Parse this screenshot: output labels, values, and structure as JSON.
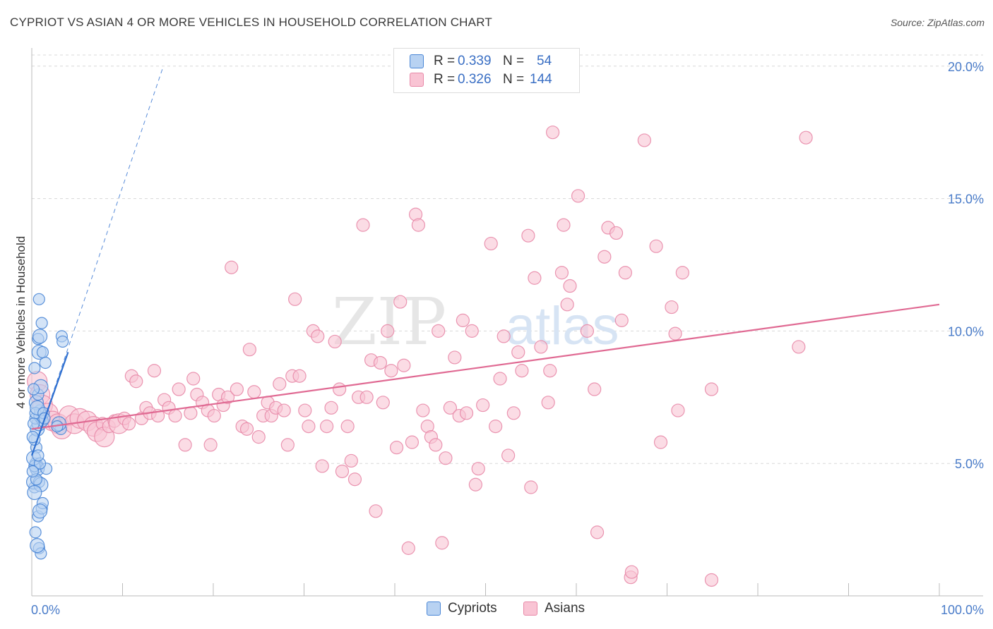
{
  "header": {
    "title": "CYPRIOT VS ASIAN 4 OR MORE VEHICLES IN HOUSEHOLD CORRELATION CHART",
    "source": "Source: ZipAtlas.com"
  },
  "legend": {
    "rows": [
      {
        "r_label": "R =",
        "r_value": "0.339",
        "n_label": "N =",
        "n_value": "54"
      },
      {
        "r_label": "R =",
        "r_value": "0.326",
        "n_label": "N =",
        "n_value": "144"
      }
    ]
  },
  "bottom_legend": {
    "cypriots": "Cypriots",
    "asians": "Asians"
  },
  "watermark": {
    "zip": "ZIP",
    "atlas": "atlas"
  },
  "colors": {
    "cypriot_fill": "#b8d2f2",
    "cypriot_stroke": "#4a86d6",
    "cypriot_line": "#2e6fd0",
    "asian_fill": "#f9c4d4",
    "asian_stroke": "#e889a8",
    "asian_line": "#e06a93",
    "tick": "#4a7cc9",
    "grid": "#d8d8d8"
  },
  "chart_data": {
    "type": "scatter",
    "title": "CYPRIOT VS ASIAN 4 OR MORE VEHICLES IN HOUSEHOLD CORRELATION CHART",
    "xlabel": "",
    "ylabel": "4 or more Vehicles in Household",
    "xlim": [
      0,
      100
    ],
    "ylim": [
      0,
      20.5
    ],
    "x_tick_labels": [
      "0.0%",
      "100.0%"
    ],
    "y_ticks": [
      5,
      10,
      15,
      20
    ],
    "y_tick_labels": [
      "5.0%",
      "10.0%",
      "15.0%",
      "20.0%"
    ],
    "grid": true,
    "series": [
      {
        "name": "Cypriots",
        "R": 0.339,
        "N": 54,
        "trend": {
          "x0": 0,
          "y0": 5.3,
          "x1": 4.0,
          "y1": 9.2
        },
        "trend_extended": {
          "x0": 0,
          "y0": 5.3,
          "x1": 14.5,
          "y1": 20.0
        },
        "points": [
          [
            0.3,
            4.1,
            0
          ],
          [
            0.2,
            4.3,
            1
          ],
          [
            0.5,
            4.9,
            1
          ],
          [
            0.4,
            5.0,
            0
          ],
          [
            0.6,
            4.8,
            1
          ],
          [
            0.3,
            4.9,
            0
          ],
          [
            0.8,
            4.3,
            0
          ],
          [
            1.0,
            4.2,
            1
          ],
          [
            0.7,
            3.0,
            0
          ],
          [
            1.1,
            3.3,
            0
          ],
          [
            1.2,
            3.5,
            0
          ],
          [
            0.9,
            3.2,
            1
          ],
          [
            0.4,
            2.4,
            0
          ],
          [
            0.8,
            1.8,
            0
          ],
          [
            1.0,
            1.6,
            0
          ],
          [
            0.6,
            1.9,
            1
          ],
          [
            0.5,
            5.6,
            0
          ],
          [
            0.3,
            5.9,
            0
          ],
          [
            0.6,
            6.3,
            1
          ],
          [
            0.8,
            6.5,
            1
          ],
          [
            0.4,
            6.7,
            0
          ],
          [
            1.0,
            6.8,
            1
          ],
          [
            1.2,
            6.6,
            0
          ],
          [
            0.9,
            7.0,
            0
          ],
          [
            0.5,
            7.3,
            1
          ],
          [
            0.7,
            7.6,
            0
          ],
          [
            1.0,
            7.9,
            1
          ],
          [
            0.3,
            8.6,
            0
          ],
          [
            1.5,
            8.8,
            0
          ],
          [
            0.8,
            9.2,
            1
          ],
          [
            1.2,
            9.2,
            0
          ],
          [
            0.7,
            9.7,
            0
          ],
          [
            0.9,
            9.8,
            1
          ],
          [
            1.1,
            10.3,
            0
          ],
          [
            0.8,
            11.2,
            0
          ],
          [
            3.3,
            9.8,
            0
          ],
          [
            3.4,
            9.6,
            0
          ],
          [
            3.2,
            6.3,
            0
          ],
          [
            3.0,
            6.5,
            1
          ],
          [
            1.6,
            4.8,
            0
          ],
          [
            0.2,
            5.2,
            1
          ],
          [
            0.1,
            6.0,
            0
          ],
          [
            0.4,
            6.9,
            0
          ],
          [
            0.6,
            7.1,
            1
          ],
          [
            1.3,
            6.9,
            0
          ],
          [
            0.2,
            7.8,
            0
          ],
          [
            0.9,
            5.0,
            0
          ],
          [
            0.5,
            4.4,
            0
          ],
          [
            0.3,
            3.9,
            1
          ],
          [
            0.2,
            6.5,
            0
          ],
          [
            1.4,
            6.7,
            0
          ],
          [
            0.7,
            5.3,
            0
          ],
          [
            0.1,
            4.7,
            0
          ],
          [
            2.8,
            6.4,
            0
          ]
        ]
      },
      {
        "name": "Asians",
        "R": 0.326,
        "N": 144,
        "trend": {
          "x0": 0,
          "y0": 6.3,
          "x1": 100,
          "y1": 11.0
        },
        "points": [
          [
            0.6,
            8.1,
            1
          ],
          [
            0.9,
            7.6,
            1
          ],
          [
            1.2,
            7.2,
            1
          ],
          [
            1.8,
            6.9,
            1
          ],
          [
            2.3,
            6.6,
            1
          ],
          [
            2.9,
            6.5,
            1
          ],
          [
            3.3,
            6.3,
            1
          ],
          [
            4.1,
            6.8,
            1
          ],
          [
            4.7,
            6.5,
            1
          ],
          [
            5.3,
            6.7,
            1
          ],
          [
            6.1,
            6.6,
            1
          ],
          [
            6.8,
            6.4,
            1
          ],
          [
            7.2,
            6.2,
            1
          ],
          [
            7.8,
            6.5,
            0
          ],
          [
            8.0,
            6.0,
            1
          ],
          [
            8.5,
            6.4,
            0
          ],
          [
            9.1,
            6.6,
            0
          ],
          [
            9.6,
            6.5,
            1
          ],
          [
            10.2,
            6.7,
            0
          ],
          [
            10.7,
            6.5,
            0
          ],
          [
            11.0,
            8.3,
            0
          ],
          [
            11.5,
            8.1,
            0
          ],
          [
            12.1,
            6.7,
            0
          ],
          [
            12.6,
            7.1,
            0
          ],
          [
            13.0,
            6.9,
            0
          ],
          [
            13.5,
            8.5,
            0
          ],
          [
            13.9,
            6.8,
            0
          ],
          [
            14.6,
            7.4,
            0
          ],
          [
            15.1,
            7.1,
            0
          ],
          [
            15.8,
            6.8,
            0
          ],
          [
            16.2,
            7.8,
            0
          ],
          [
            16.9,
            5.7,
            0
          ],
          [
            17.5,
            6.9,
            0
          ],
          [
            17.8,
            8.2,
            0
          ],
          [
            18.2,
            7.6,
            0
          ],
          [
            18.8,
            7.3,
            0
          ],
          [
            19.4,
            7.0,
            0
          ],
          [
            19.7,
            5.7,
            0
          ],
          [
            20.1,
            6.8,
            0
          ],
          [
            20.6,
            7.6,
            0
          ],
          [
            21.1,
            7.2,
            0
          ],
          [
            21.6,
            7.5,
            0
          ],
          [
            22.0,
            12.4,
            0
          ],
          [
            22.6,
            7.8,
            0
          ],
          [
            23.2,
            6.4,
            0
          ],
          [
            23.7,
            6.3,
            0
          ],
          [
            24.0,
            9.3,
            0
          ],
          [
            24.5,
            7.7,
            0
          ],
          [
            25.0,
            6.0,
            0
          ],
          [
            25.5,
            6.8,
            0
          ],
          [
            26.0,
            7.3,
            0
          ],
          [
            26.4,
            6.8,
            0
          ],
          [
            26.9,
            7.1,
            0
          ],
          [
            27.3,
            8.0,
            0
          ],
          [
            27.8,
            7.0,
            0
          ],
          [
            28.2,
            5.7,
            0
          ],
          [
            28.7,
            8.3,
            0
          ],
          [
            29.0,
            11.2,
            0
          ],
          [
            29.5,
            8.3,
            0
          ],
          [
            30.1,
            7.0,
            0
          ],
          [
            30.5,
            6.4,
            0
          ],
          [
            31.0,
            10.0,
            0
          ],
          [
            31.5,
            9.8,
            0
          ],
          [
            32.0,
            4.9,
            0
          ],
          [
            32.5,
            6.4,
            0
          ],
          [
            33.0,
            7.1,
            0
          ],
          [
            33.4,
            9.6,
            0
          ],
          [
            33.9,
            7.8,
            0
          ],
          [
            34.2,
            4.7,
            0
          ],
          [
            34.8,
            6.4,
            0
          ],
          [
            35.2,
            5.1,
            0
          ],
          [
            35.6,
            4.4,
            0
          ],
          [
            36.0,
            7.5,
            0
          ],
          [
            36.5,
            14.0,
            0
          ],
          [
            36.9,
            7.5,
            0
          ],
          [
            37.4,
            8.9,
            0
          ],
          [
            37.9,
            3.2,
            0
          ],
          [
            38.4,
            8.8,
            0
          ],
          [
            38.7,
            7.3,
            0
          ],
          [
            39.2,
            10.0,
            0
          ],
          [
            39.6,
            8.5,
            0
          ],
          [
            40.2,
            5.6,
            0
          ],
          [
            40.6,
            11.1,
            0
          ],
          [
            41.0,
            8.7,
            0
          ],
          [
            41.5,
            1.8,
            0
          ],
          [
            41.9,
            5.8,
            0
          ],
          [
            42.3,
            14.4,
            0
          ],
          [
            42.6,
            14.0,
            0
          ],
          [
            43.1,
            7.0,
            0
          ],
          [
            43.6,
            6.4,
            0
          ],
          [
            44.0,
            6.0,
            0
          ],
          [
            44.5,
            5.7,
            0
          ],
          [
            44.8,
            10.0,
            0
          ],
          [
            45.2,
            2.0,
            0
          ],
          [
            45.6,
            5.2,
            0
          ],
          [
            46.1,
            7.1,
            0
          ],
          [
            46.6,
            9.0,
            0
          ],
          [
            47.1,
            6.8,
            0
          ],
          [
            47.5,
            10.4,
            0
          ],
          [
            47.9,
            6.9,
            0
          ],
          [
            48.5,
            10.0,
            0
          ],
          [
            48.9,
            4.2,
            0
          ],
          [
            49.2,
            4.8,
            0
          ],
          [
            49.7,
            7.2,
            0
          ],
          [
            50.6,
            13.3,
            0
          ],
          [
            51.1,
            6.4,
            0
          ],
          [
            51.6,
            8.2,
            0
          ],
          [
            52.0,
            9.8,
            0
          ],
          [
            52.5,
            5.3,
            0
          ],
          [
            53.1,
            6.9,
            0
          ],
          [
            53.6,
            9.2,
            0
          ],
          [
            54.0,
            8.5,
            0
          ],
          [
            54.7,
            13.6,
            0
          ],
          [
            55.0,
            4.1,
            0
          ],
          [
            55.4,
            12.0,
            0
          ],
          [
            56.1,
            9.4,
            0
          ],
          [
            56.9,
            7.3,
            0
          ],
          [
            57.1,
            8.5,
            0
          ],
          [
            57.4,
            17.5,
            0
          ],
          [
            58.4,
            12.2,
            0
          ],
          [
            58.6,
            14.0,
            0
          ],
          [
            59.0,
            11.0,
            0
          ],
          [
            59.3,
            11.7,
            0
          ],
          [
            60.2,
            15.1,
            0
          ],
          [
            61.2,
            10.0,
            0
          ],
          [
            62.0,
            7.8,
            0
          ],
          [
            62.3,
            2.4,
            0
          ],
          [
            63.1,
            12.8,
            0
          ],
          [
            63.5,
            13.9,
            0
          ],
          [
            64.4,
            13.7,
            0
          ],
          [
            65.0,
            10.4,
            0
          ],
          [
            65.4,
            12.2,
            0
          ],
          [
            66.0,
            0.7,
            0
          ],
          [
            66.1,
            0.9,
            0
          ],
          [
            67.5,
            17.2,
            0
          ],
          [
            68.8,
            13.2,
            0
          ],
          [
            69.3,
            5.8,
            0
          ],
          [
            70.5,
            10.9,
            0
          ],
          [
            70.9,
            9.9,
            0
          ],
          [
            71.2,
            7.0,
            0
          ],
          [
            71.7,
            12.2,
            0
          ],
          [
            74.9,
            0.6,
            0
          ],
          [
            74.9,
            7.8,
            0
          ],
          [
            84.5,
            9.4,
            0
          ],
          [
            85.3,
            17.3,
            0
          ]
        ]
      }
    ]
  }
}
